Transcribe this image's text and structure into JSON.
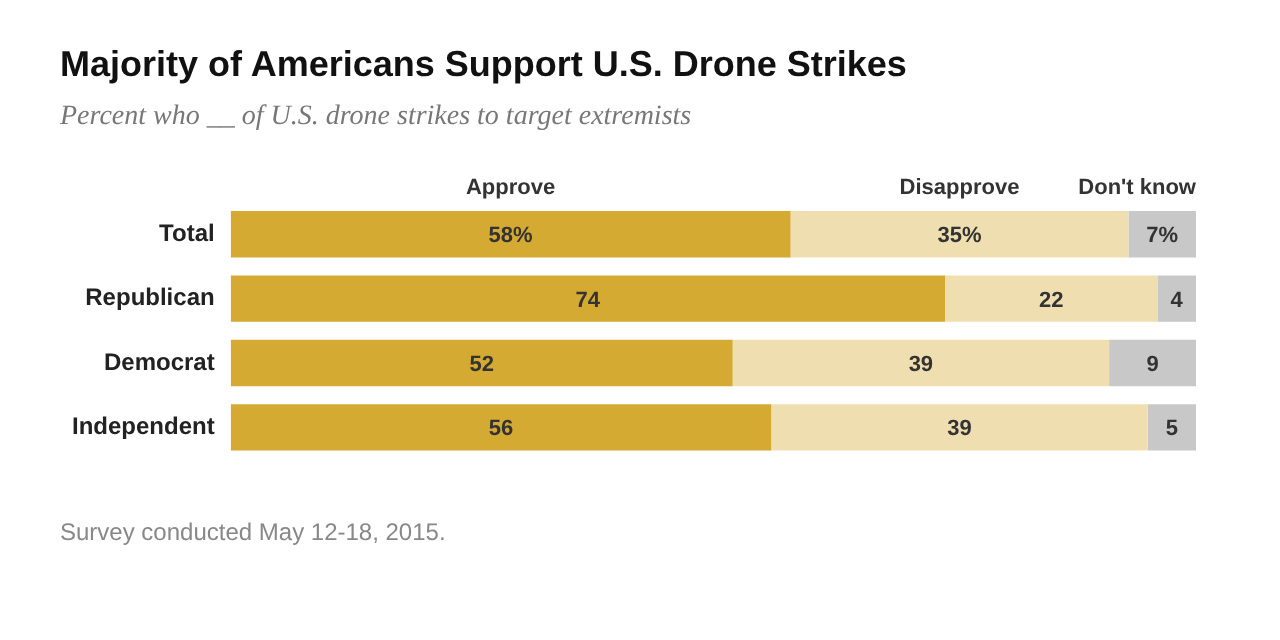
{
  "chart_data": {
    "type": "bar",
    "orientation": "horizontal",
    "stacked": true,
    "title": "Majority of Americans Support U.S. Drone Strikes",
    "subtitle": "Percent who __ of U.S. drone strikes to target extremists",
    "categories": [
      "Total",
      "Republican",
      "Democrat",
      "Independent"
    ],
    "series": [
      {
        "name": "Approve",
        "color": "#d4aa32",
        "values": [
          58,
          74,
          52,
          56
        ],
        "value_labels": [
          "58%",
          "74",
          "52",
          "56"
        ]
      },
      {
        "name": "Disapprove",
        "color": "#efdfb0",
        "values": [
          35,
          22,
          39,
          39
        ],
        "value_labels": [
          "35%",
          "22",
          "39",
          "39"
        ]
      },
      {
        "name": "Don't know",
        "color": "#c8c8c8",
        "values": [
          7,
          4,
          9,
          5
        ],
        "value_labels": [
          "7%",
          "4",
          "9",
          "5"
        ]
      }
    ],
    "tick_labels": "y",
    "grid": false,
    "legend": false,
    "annotations": [
      "Survey conducted May 12-18, 2015."
    ]
  }
}
